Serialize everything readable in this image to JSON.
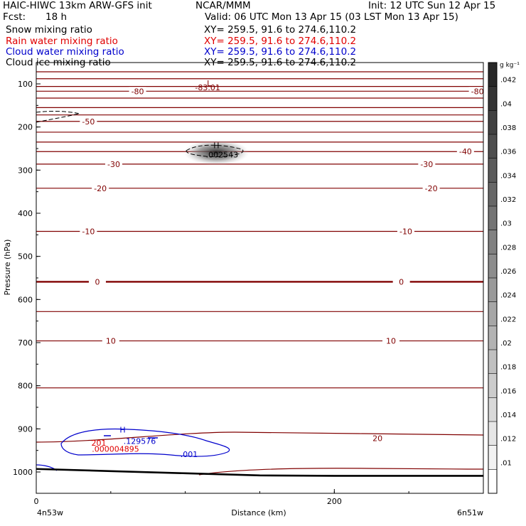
{
  "header": {
    "title": "HAIC-HIWC 13km ARW-GFS init",
    "agency": "NCAR/MMM",
    "init": "Init: 12 UTC Sun 12 Apr 15",
    "fcst_label": "Fcst:",
    "fcst_value": "18 h",
    "valid": "Valid: 06 UTC Mon 13 Apr 15 (03 LST Mon 13 Apr 15)"
  },
  "fields": [
    {
      "name": "Snow mixing ratio",
      "xy": "XY= 259.5, 91.6 to 274.6,110.2",
      "color": "#000000"
    },
    {
      "name": "Rain water mixing ratio",
      "xy": "XY= 259.5, 91.6 to 274.6,110.2",
      "color": "#e00000"
    },
    {
      "name": "Cloud water mixing ratio",
      "xy": "XY= 259.5, 91.6 to 274.6,110.2",
      "color": "#0000cc"
    },
    {
      "name": "Cloud ice mixing ratio",
      "xy": "XY= 259.5, 91.6 to 274.6,110.2",
      "color": "#000000"
    }
  ],
  "chart_data": {
    "type": "cross-section",
    "ylabel": "Pressure (hPa)",
    "xlabel": "Distance (km)",
    "x_left_label": "4n53w",
    "x_right_label": "6n51w",
    "xlim": [
      0,
      300
    ],
    "ylim": [
      1050,
      50
    ],
    "x_ticks": [
      0,
      200
    ],
    "y_ticks": [
      100,
      200,
      300,
      400,
      500,
      600,
      700,
      800,
      900,
      1000
    ],
    "temperature_contours": {
      "color": "#800000",
      "levels": [
        {
          "p": 72
        },
        {
          "p": 88
        },
        {
          "p": 106
        },
        {
          "p": 117,
          "labels": [
            {
              "x": 68,
              "text": "-80"
            },
            {
              "x": 296,
              "text": "-80"
            }
          ]
        },
        {
          "p": 133
        },
        {
          "p": 155
        },
        {
          "p": 172
        },
        {
          "p": 187,
          "labels": [
            {
              "x": 35,
              "text": "-50"
            }
          ]
        },
        {
          "p": 212
        },
        {
          "p": 235
        },
        {
          "p": 257,
          "labels": [
            {
              "x": 288,
              "text": "-40"
            }
          ]
        },
        {
          "p": 286,
          "labels": [
            {
              "x": 52,
              "text": "-30"
            },
            {
              "x": 262,
              "text": "-30"
            }
          ]
        },
        {
          "p": 342,
          "labels": [
            {
              "x": 43,
              "text": "-20"
            },
            {
              "x": 265,
              "text": "-20"
            }
          ]
        },
        {
          "p": 442,
          "labels": [
            {
              "x": 35,
              "text": "-10"
            },
            {
              "x": 248,
              "text": "-10"
            }
          ]
        },
        {
          "p": 559,
          "bold": true,
          "labels": [
            {
              "x": 41,
              "text": "0"
            },
            {
              "x": 245,
              "text": "0"
            }
          ]
        },
        {
          "p": 628
        },
        {
          "p": 696,
          "labels": [
            {
              "x": 50,
              "text": "10"
            },
            {
              "x": 238,
              "text": "10"
            }
          ]
        },
        {
          "p": 805
        }
      ],
      "extra_labels": [
        {
          "x": 115,
          "y": 108,
          "text": "-83.01"
        },
        {
          "x": 116,
          "y": 98,
          "text": "L"
        },
        {
          "x": 229,
          "y": 922,
          "text": "20"
        }
      ]
    },
    "freezing_level_hPa": 559,
    "terrain": [
      [
        0,
        993
      ],
      [
        50,
        998
      ],
      [
        100,
        1003
      ],
      [
        150,
        1008
      ],
      [
        200,
        1009
      ],
      [
        250,
        1009
      ],
      [
        300,
        1009
      ]
    ],
    "snow_max": {
      "value": ".002543",
      "marker": "H",
      "x": 118,
      "p": 259
    },
    "cloud_water_max": {
      "value": ".129576",
      "marker": "H",
      "x": 57,
      "p": 932
    },
    "cloud_water_contour_label": ".001",
    "rain_max": {
      "value": ".000004895",
      "x": 47,
      "p": 950
    },
    "rain_contour_label": "201",
    "colorbar": {
      "unit": "g kg⁻¹",
      "labels": [
        ".042",
        ".04",
        ".038",
        ".036",
        ".034",
        ".032",
        ".03",
        ".028",
        ".026",
        ".024",
        ".022",
        ".02",
        ".018",
        ".016",
        ".014",
        ".012",
        ".01"
      ]
    }
  }
}
